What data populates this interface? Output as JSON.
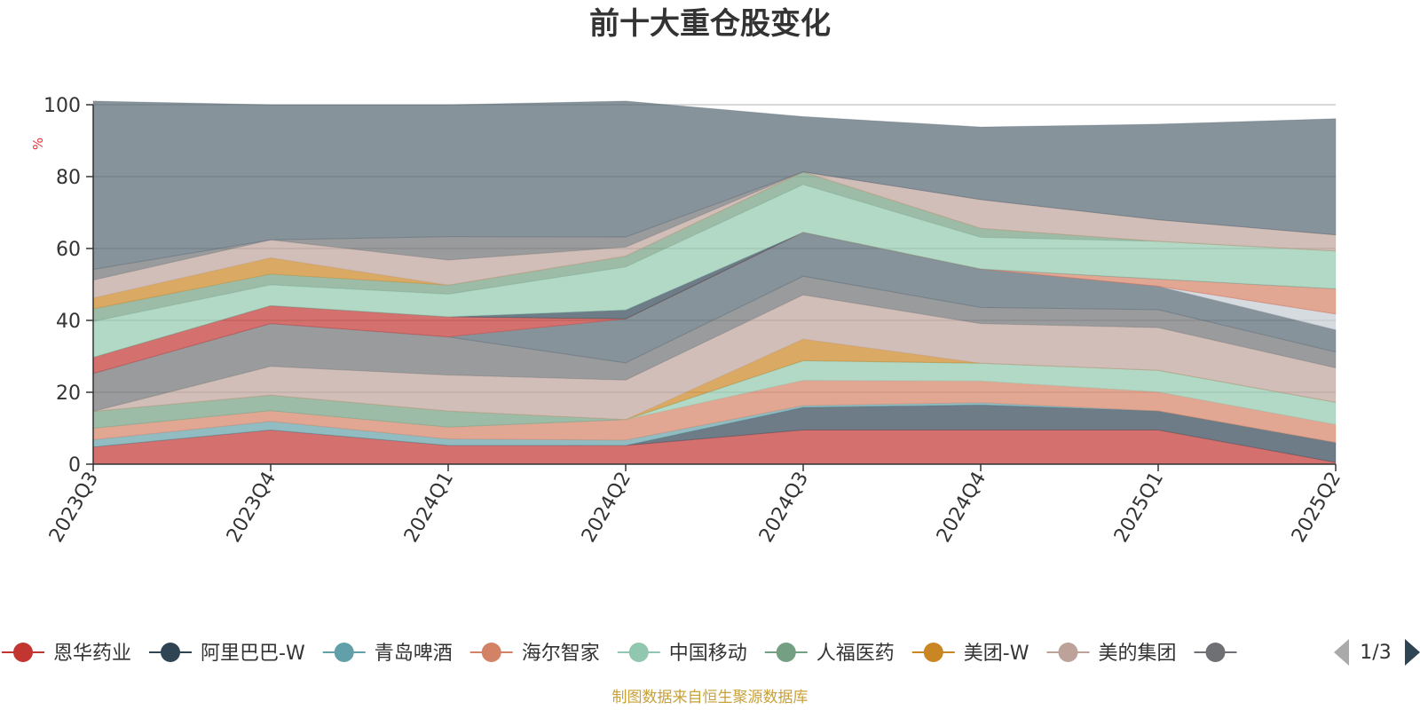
{
  "chart_data": {
    "type": "area",
    "stacked": true,
    "title": "前十大重仓股变化",
    "ylabel": "%",
    "ylim": [
      0,
      100
    ],
    "yticks": [
      0,
      20,
      40,
      60,
      80,
      100
    ],
    "grid": true,
    "categories": [
      "2023Q3",
      "2023Q4",
      "2024Q1",
      "2024Q2",
      "2024Q3",
      "2024Q4",
      "2025Q1",
      "2025Q2"
    ],
    "series": [
      {
        "name": "恩华药业",
        "color": "#c23531",
        "values": [
          4.8,
          9.5,
          5.2,
          5.2,
          9.5,
          9.5,
          9.5,
          0.5
        ]
      },
      {
        "name": "阿里巴巴-W",
        "color": "#2f4554",
        "values": [
          0,
          0,
          0,
          0,
          6.3,
          7.0,
          5.3,
          5.5
        ]
      },
      {
        "name": "青岛啤酒",
        "color": "#61a0a8",
        "values": [
          2.0,
          2.4,
          1.8,
          1.5,
          0.5,
          0.6,
          0,
          0
        ]
      },
      {
        "name": "海尔智家",
        "color": "#d48265",
        "values": [
          3.2,
          3.0,
          3.3,
          5.7,
          7.0,
          6.0,
          5.3,
          5.0
        ]
      },
      {
        "name": "中国移动",
        "color": "#91c7ae",
        "values": [
          0,
          0,
          0,
          0,
          5.5,
          5.0,
          6.0,
          6.2
        ]
      },
      {
        "name": "人福医药",
        "color": "#749f83",
        "values": [
          4.7,
          4.3,
          4.5,
          0,
          0,
          0,
          0,
          0
        ]
      },
      {
        "name": "美团-W",
        "color": "#ca8622",
        "values": [
          0,
          0,
          0,
          0,
          6.0,
          0,
          0,
          0
        ]
      },
      {
        "name": "美的集团",
        "color": "#bda29a",
        "values": [
          0,
          8.0,
          10.0,
          11.0,
          12.3,
          11.0,
          11.9,
          9.6
        ]
      },
      {
        "name": "",
        "color": "#6e7074",
        "values": [
          10.5,
          11.9,
          10.6,
          4.8,
          5.2,
          4.5,
          5.0,
          4.4
        ]
      },
      {
        "name": "",
        "color": "#546570",
        "values": [
          0,
          0,
          0,
          12.2,
          12.2,
          10.7,
          6.5,
          6.2
        ]
      },
      {
        "name": "",
        "color": "#c4ccd3",
        "values": [
          0,
          0,
          0,
          0,
          0,
          0,
          0,
          4.4
        ]
      },
      {
        "name": "",
        "color": "#c23531",
        "values": [
          4.5,
          5.0,
          5.6,
          0,
          0,
          0,
          0,
          0
        ]
      },
      {
        "name": "",
        "color": "#d48265",
        "values": [
          0,
          0,
          0,
          0,
          0,
          0,
          2.0,
          7.0
        ]
      },
      {
        "name": "",
        "color": "#2f4554",
        "values": [
          0,
          0,
          0,
          2.5,
          0,
          0,
          0,
          0
        ]
      },
      {
        "name": "",
        "color": "#91c7ae",
        "values": [
          10.0,
          5.8,
          6.3,
          12.0,
          13.3,
          8.8,
          10.5,
          10.5
        ]
      },
      {
        "name": "",
        "color": "#749f83",
        "values": [
          3.5,
          3.0,
          2.5,
          3.0,
          3.5,
          2.5,
          0,
          0
        ]
      },
      {
        "name": "",
        "color": "#ca8622",
        "values": [
          3.0,
          4.5,
          0,
          0,
          0,
          0,
          0,
          0
        ]
      },
      {
        "name": "",
        "color": "#bda29a",
        "values": [
          5.0,
          5.0,
          7.0,
          2.5,
          0,
          8.0,
          6.0,
          4.5
        ]
      },
      {
        "name": "",
        "color": "#6e7074",
        "values": [
          3.0,
          0,
          6.5,
          2.8,
          0,
          0,
          0,
          0
        ]
      },
      {
        "name": "",
        "color": "#546570",
        "values": [
          46.8,
          37.6,
          36.7,
          37.8,
          15.4,
          20.2,
          26.6,
          32.3
        ]
      }
    ]
  },
  "legend": {
    "page_indicator": "1/3",
    "prev_icon": "triangle-left-icon",
    "next_icon": "triangle-right-icon"
  },
  "source_note": "制图数据来自恒生聚源数据库",
  "colors": {
    "title": "#333333",
    "unit": "#e8323c",
    "source": "#c8a13a",
    "axis": "#333333",
    "grid": "#cccccc",
    "pager_active": "#2f4554",
    "pager_inactive": "#aaaaaa"
  }
}
